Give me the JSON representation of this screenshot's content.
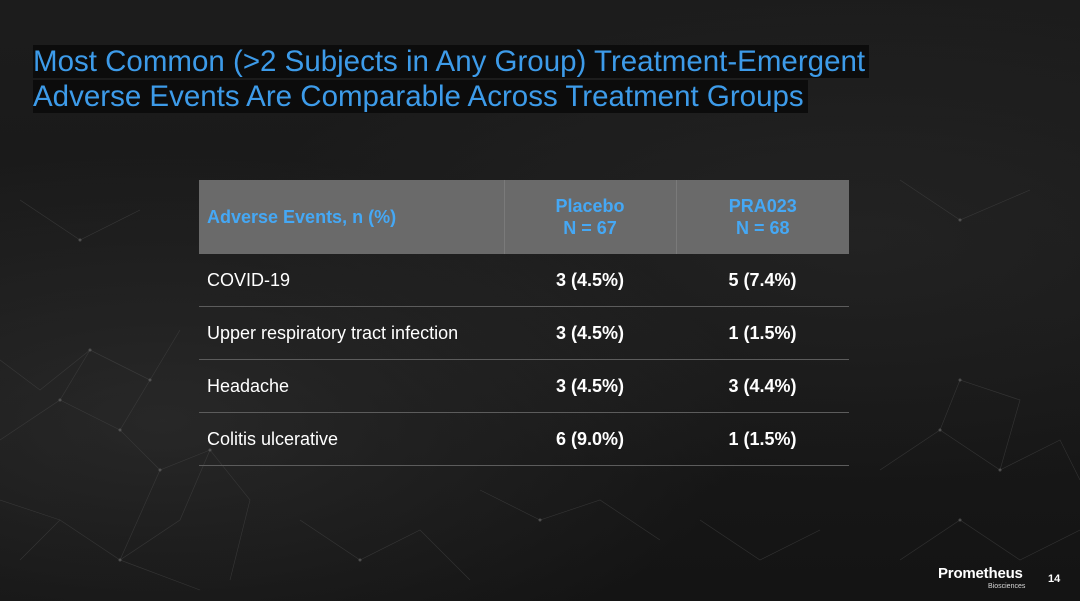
{
  "slide": {
    "title_line1": "Most Common (>2 Subjects in Any Group) Treatment-Emergent",
    "title_line2": "Adverse Events Are Comparable Across Treatment Groups",
    "page_number": "14"
  },
  "table": {
    "header": {
      "label": "Adverse Events, n (%)",
      "groups": [
        {
          "name": "Placebo",
          "n": "N = 67"
        },
        {
          "name": "PRA023",
          "n": "N = 68"
        }
      ]
    },
    "rows": [
      {
        "event": "COVID-19",
        "placebo": "3 (4.5%)",
        "pra023": "5 (7.4%)"
      },
      {
        "event": "Upper respiratory tract infection",
        "placebo": "3 (4.5%)",
        "pra023": "1 (1.5%)"
      },
      {
        "event": "Headache",
        "placebo": "3 (4.5%)",
        "pra023": "3 (4.4%)"
      },
      {
        "event": "Colitis ulcerative",
        "placebo": "6 (9.0%)",
        "pra023": "1 (1.5%)"
      }
    ]
  },
  "logo": {
    "name": "Prometheus",
    "subtitle": "Biosciences"
  },
  "colors": {
    "title": "#3d9be9",
    "header_text": "#45a8f5",
    "header_bg": "#6a6a6a",
    "background": "#1a1a1a",
    "row_divider": "#5c5c5c"
  }
}
